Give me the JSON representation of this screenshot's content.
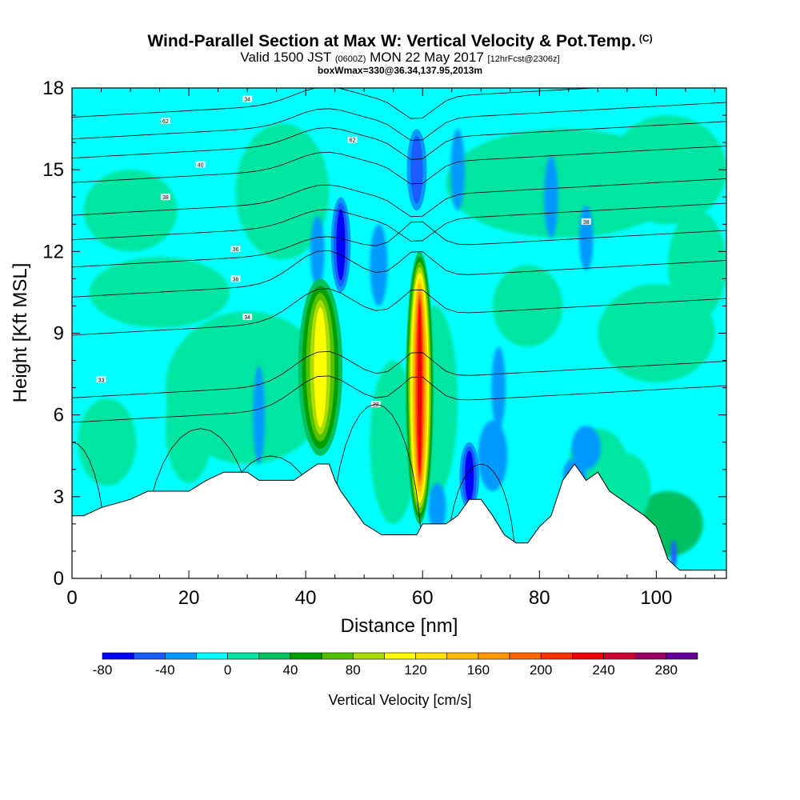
{
  "title": {
    "main": "Wind-Parallel Section at Max W: Vertical Velocity & Pot.Temp.",
    "copyright": "(C)",
    "valid_prefix": "Valid 1500 JST",
    "valid_zulu": "(0600Z)",
    "valid_date": "MON 22 May 2017",
    "forecast": "[12hrFcst@2306z]",
    "box_info": "boxWmax=330@36.34,137.95,2013m"
  },
  "chart_data": {
    "type": "heatmap",
    "xlabel": "Distance [nm]",
    "ylabel": "Height [Kft MSL]",
    "xlim": [
      0,
      112
    ],
    "ylim": [
      0,
      18
    ],
    "x_ticks": [
      0,
      20,
      40,
      60,
      80,
      100
    ],
    "y_ticks": [
      0,
      3,
      6,
      9,
      12,
      15,
      18
    ],
    "colorbar": {
      "label": "Vertical Velocity [cm/s]",
      "tick_values": [
        -80,
        -40,
        0,
        40,
        80,
        120,
        160,
        200,
        240,
        280
      ],
      "bin_edges": [
        -80,
        -60,
        -40,
        -20,
        0,
        20,
        40,
        60,
        80,
        100,
        120,
        140,
        160,
        180,
        200,
        220,
        240,
        260,
        280,
        300
      ],
      "colors": [
        "#0000ff",
        "#1a5cff",
        "#0099ff",
        "#00ffff",
        "#00e5a0",
        "#00c060",
        "#00a000",
        "#55c000",
        "#aadd00",
        "#ffff00",
        "#ffe000",
        "#ffbb00",
        "#ff9900",
        "#ff6600",
        "#ff3300",
        "#ee0000",
        "#cc0033",
        "#990066",
        "#660099"
      ]
    },
    "terrain": {
      "x": [
        0,
        2,
        5,
        10,
        13,
        16,
        18,
        20,
        23,
        26,
        28,
        30,
        32,
        34,
        36,
        38,
        40,
        42,
        44,
        45,
        46,
        47,
        48,
        49,
        50,
        53,
        55,
        57,
        59,
        60,
        62,
        64,
        66,
        68,
        70,
        72,
        74,
        76,
        78,
        80,
        82,
        84,
        86,
        88,
        90,
        92,
        94,
        96,
        98,
        100,
        101,
        102,
        104,
        106,
        108,
        110,
        112
      ],
      "height_kft": [
        2.3,
        2.3,
        2.6,
        2.9,
        3.2,
        3.2,
        3.2,
        3.2,
        3.6,
        3.9,
        3.9,
        3.9,
        3.6,
        3.6,
        3.6,
        3.6,
        3.9,
        4.2,
        4.2,
        3.6,
        3.2,
        2.9,
        2.6,
        2.3,
        2.0,
        1.6,
        1.6,
        1.6,
        1.6,
        2.0,
        2.0,
        2.0,
        2.3,
        2.9,
        2.9,
        2.3,
        1.6,
        1.3,
        1.3,
        1.9,
        2.3,
        3.6,
        4.2,
        3.6,
        3.9,
        3.2,
        2.9,
        2.6,
        2.3,
        1.9,
        1.3,
        0.7,
        0.3,
        0.3,
        0.3,
        0.3,
        0.3
      ]
    },
    "features": [
      {
        "kind": "updraft",
        "x": 59.5,
        "y_range": [
          2.0,
          12.0
        ],
        "peak_cm_s": 240
      },
      {
        "kind": "updraft",
        "x": 42.5,
        "y_range": [
          4.5,
          11.0
        ],
        "peak_cm_s": 110
      },
      {
        "kind": "downdraft",
        "x": 46.0,
        "y_range": [
          10.5,
          14.0
        ],
        "peak_cm_s": -80
      },
      {
        "kind": "downdraft",
        "x": 59.0,
        "y_range": [
          13.5,
          16.5
        ],
        "peak_cm_s": -60
      },
      {
        "kind": "downdraft",
        "x": 68.0,
        "y_range": [
          2.5,
          5.0
        ],
        "peak_cm_s": -80
      }
    ],
    "theta_contours": [
      {
        "y": 17.6,
        "label": "34"
      },
      {
        "y": 16.8,
        "label": "62"
      },
      {
        "y": 16.1,
        "label": "62"
      },
      {
        "y": 15.2,
        "label": "40"
      },
      {
        "y": 14.0,
        "label": "38"
      },
      {
        "y": 13.1,
        "label": "38"
      },
      {
        "y": 12.1,
        "label": "36"
      },
      {
        "y": 11.0,
        "label": "36"
      },
      {
        "y": 9.6,
        "label": "34"
      },
      {
        "y": 7.3,
        "label": "33"
      },
      {
        "y": 6.4,
        "label": "32"
      }
    ]
  }
}
